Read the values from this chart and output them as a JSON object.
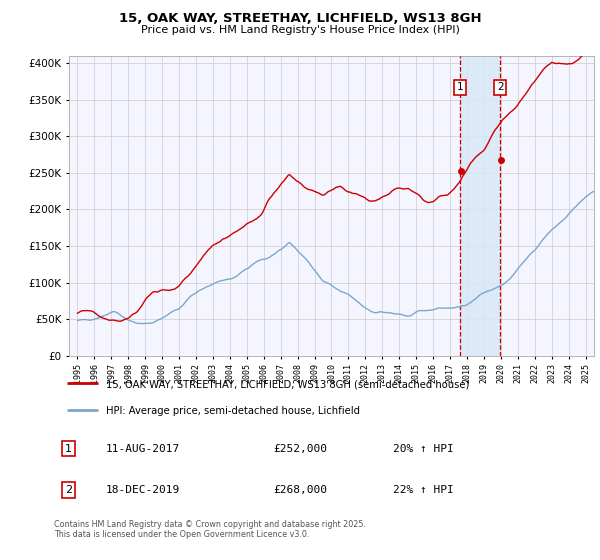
{
  "title_line1": "15, OAK WAY, STREETHAY, LICHFIELD, WS13 8GH",
  "title_line2": "Price paid vs. HM Land Registry's House Price Index (HPI)",
  "legend_line1": "15, OAK WAY, STREETHAY, LICHFIELD, WS13 8GH (semi-detached house)",
  "legend_line2": "HPI: Average price, semi-detached house, Lichfield",
  "transaction1_label": "1",
  "transaction1_date": "11-AUG-2017",
  "transaction1_price": "£252,000",
  "transaction1_hpi": "20% ↑ HPI",
  "transaction2_label": "2",
  "transaction2_date": "18-DEC-2019",
  "transaction2_price": "£268,000",
  "transaction2_hpi": "22% ↑ HPI",
  "footer": "Contains HM Land Registry data © Crown copyright and database right 2025.\nThis data is licensed under the Open Government Licence v3.0.",
  "hpi_color": "#7ba7cc",
  "price_color": "#cc0000",
  "marker_color": "#cc0000",
  "vline_color": "#cc0000",
  "shade_color": "#d8e8f5",
  "grid_color": "#cccccc",
  "bg_color": "#ffffff",
  "plot_bg": "#f5f5ff",
  "transaction1_date_num": 2017.61,
  "transaction2_date_num": 2019.96,
  "ylim_min": 0,
  "ylim_max": 410000,
  "xlim_min": 1994.5,
  "xlim_max": 2025.5,
  "yticks": [
    0,
    50000,
    100000,
    150000,
    200000,
    250000,
    300000,
    350000,
    400000
  ],
  "xticks": [
    1995,
    1996,
    1997,
    1998,
    1999,
    2000,
    2001,
    2002,
    2003,
    2004,
    2005,
    2006,
    2007,
    2008,
    2009,
    2010,
    2011,
    2012,
    2013,
    2014,
    2015,
    2016,
    2017,
    2018,
    2019,
    2020,
    2021,
    2022,
    2023,
    2024,
    2025
  ],
  "transaction1_y": 252000,
  "transaction2_y": 268000
}
